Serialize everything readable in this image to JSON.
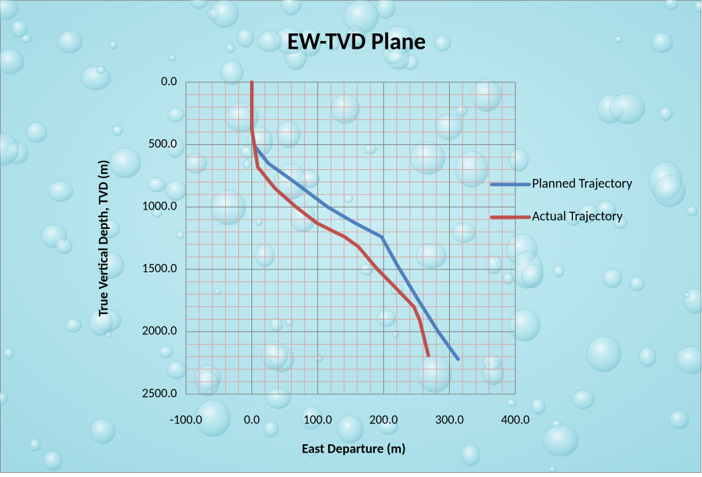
{
  "chart_data": {
    "type": "line",
    "title": "EW-TVD Plane",
    "x_label": "East Departure (m)",
    "y_label": "True Vertical Depth, TVD (m)",
    "xlim": [
      -100,
      400
    ],
    "ylim": [
      2500,
      0
    ],
    "xticks": [
      {
        "value": -100,
        "label": "-100.0"
      },
      {
        "value": 0,
        "label": "0.0"
      },
      {
        "value": 100,
        "label": "100.0"
      },
      {
        "value": 200,
        "label": "200.0"
      },
      {
        "value": 300,
        "label": "300.0"
      },
      {
        "value": 400,
        "label": "400.0"
      }
    ],
    "yticks": [
      {
        "value": 0,
        "label": "0.0"
      },
      {
        "value": 500,
        "label": "500.0"
      },
      {
        "value": 1000,
        "label": "1000.0"
      },
      {
        "value": 1500,
        "label": "1500.0"
      },
      {
        "value": 2000,
        "label": "2000.0"
      },
      {
        "value": 2500,
        "label": "2500.0"
      }
    ],
    "grid": true,
    "minor_grid": true,
    "legend": "right",
    "series": [
      {
        "name": "Planned Trajectory",
        "color": "#4f81bd",
        "x": [
          0,
          0,
          4,
          25,
          62,
          115,
          157,
          197,
          220,
          252,
          283,
          313
        ],
        "values": [
          0,
          375,
          510,
          650,
          790,
          1000,
          1130,
          1240,
          1460,
          1740,
          2000,
          2220
        ]
      },
      {
        "name": "Actual Trajectory",
        "color": "#c0504d",
        "x": [
          0,
          0,
          4,
          9,
          35,
          67,
          99,
          141,
          162,
          189,
          215,
          246,
          255,
          268
        ],
        "values": [
          0,
          375,
          510,
          680,
          850,
          1000,
          1130,
          1240,
          1320,
          1490,
          1630,
          1800,
          1910,
          2190
        ]
      }
    ]
  }
}
